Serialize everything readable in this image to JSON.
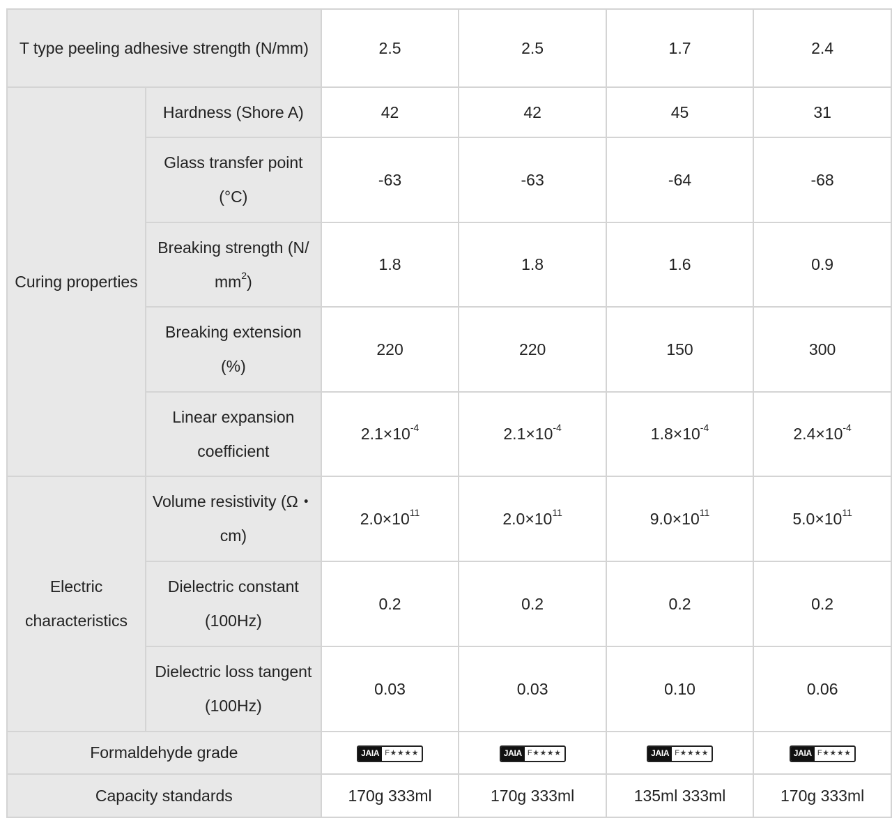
{
  "rows": {
    "t_peel": {
      "label": "T type peeling adhesive strength (N/mm)",
      "values": [
        "2.5",
        "2.5",
        "1.7",
        "2.4"
      ]
    },
    "curing": {
      "group": "Curing properties",
      "hardness": {
        "label": "Hardness (Shore A)",
        "values": [
          "42",
          "42",
          "45",
          "31"
        ]
      },
      "glass": {
        "label": "Glass transfer point (°C)",
        "values": [
          "-63",
          "-63",
          "-64",
          "-68"
        ]
      },
      "breaking_strength": {
        "label_main": "Breaking strength (N/ mm",
        "label_sup": "2",
        "label_end": ")",
        "values": [
          "1.8",
          "1.8",
          "1.6",
          "0.9"
        ]
      },
      "breaking_ext": {
        "label": "Breaking extension (%)",
        "values": [
          "220",
          "220",
          "150",
          "300"
        ]
      },
      "linear_exp": {
        "label": "Linear expansion coefficient",
        "values": [
          {
            "base": "2.1×10",
            "exp": "-4"
          },
          {
            "base": "2.1×10",
            "exp": "-4"
          },
          {
            "base": "1.8×10",
            "exp": "-4"
          },
          {
            "base": "2.4×10",
            "exp": "-4"
          }
        ]
      }
    },
    "electric": {
      "group": "Electric characteristics",
      "volume_res": {
        "label": "Volume resistivity (Ω・ cm)",
        "values": [
          {
            "base": "2.0×10",
            "exp": "11"
          },
          {
            "base": "2.0×10",
            "exp": "11"
          },
          {
            "base": "9.0×10",
            "exp": "11"
          },
          {
            "base": "5.0×10",
            "exp": "11"
          }
        ]
      },
      "dielectric_const": {
        "label": "Dielectric constant (100Hz)",
        "values": [
          "0.2",
          "0.2",
          "0.2",
          "0.2"
        ]
      },
      "dielectric_loss": {
        "label": "Dielectric loss tangent (100Hz)",
        "values": [
          "0.03",
          "0.03",
          "0.10",
          "0.06"
        ]
      }
    },
    "formaldehyde": {
      "label": "Formaldehyde grade",
      "marks": [
        {
          "org": "JAIA",
          "grade": "F★★★★"
        },
        {
          "org": "JAIA",
          "grade": "F★★★★"
        },
        {
          "org": "JAIA",
          "grade": "F★★★★"
        },
        {
          "org": "JAIA",
          "grade": "F★★★★"
        }
      ]
    },
    "capacity": {
      "label": "Capacity standards",
      "values": [
        "170g 333ml",
        "170g 333ml",
        "135ml 333ml",
        "170g 333ml"
      ]
    }
  }
}
